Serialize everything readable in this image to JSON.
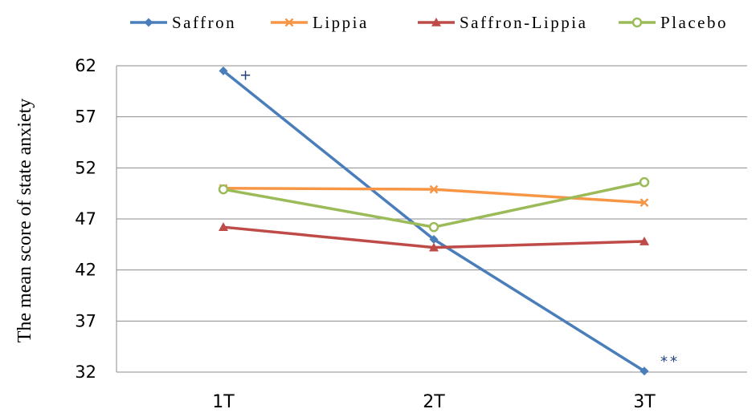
{
  "chart_data": {
    "type": "line",
    "title": "",
    "xlabel": "",
    "ylabel": "The mean score of state anxiety",
    "categories": [
      "1T",
      "2T",
      "3T"
    ],
    "ylim": [
      32,
      62
    ],
    "yticks": [
      32,
      37,
      42,
      47,
      52,
      57,
      62
    ],
    "grid": true,
    "legend_position": "top",
    "series": [
      {
        "name": "Saffron",
        "values": [
          61.5,
          45.0,
          32.1
        ],
        "color": "#4a7ebb",
        "marker": "diamond"
      },
      {
        "name": "Lippia",
        "values": [
          50.0,
          49.9,
          48.6
        ],
        "color": "#f79646",
        "marker": "x"
      },
      {
        "name": "Saffron-Lippia",
        "values": [
          46.2,
          44.2,
          44.8
        ],
        "color": "#be4b48",
        "marker": "triangle"
      },
      {
        "name": "Placebo",
        "values": [
          49.9,
          46.2,
          50.6
        ],
        "color": "#9bbb59",
        "marker": "circle"
      }
    ],
    "annotations": [
      {
        "text": "+",
        "series": "Saffron",
        "category": "1T"
      },
      {
        "text": "**",
        "series": "Saffron",
        "category": "3T"
      }
    ]
  }
}
